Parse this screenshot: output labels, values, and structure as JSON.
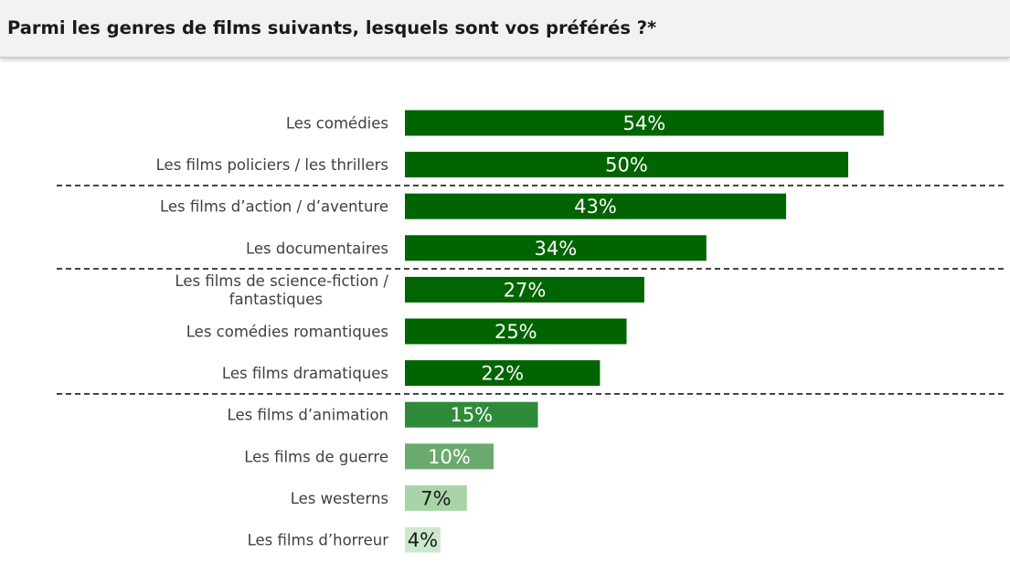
{
  "header": {
    "title": "Parmi les genres de films suivants, lesquels sont vos préférés ?*"
  },
  "chart_data": {
    "type": "bar",
    "orientation": "horizontal",
    "title": "Parmi les genres de films suivants, lesquels sont vos préférés ?*",
    "xlabel": "",
    "ylabel": "",
    "xlim": [
      0,
      60
    ],
    "grid": false,
    "legend": "none",
    "categories": [
      [
        "Les comédies"
      ],
      [
        "Les films policiers / les thrillers"
      ],
      [
        "Les films d’action / d’aventure"
      ],
      [
        "Les documentaires"
      ],
      [
        "Les films de science-fiction /",
        "fantastiques"
      ],
      [
        "Les comédies romantiques"
      ],
      [
        "Les films dramatiques"
      ],
      [
        "Les films d’animation"
      ],
      [
        "Les films de guerre"
      ],
      [
        "Les westerns"
      ],
      [
        "Les films d’horreur"
      ]
    ],
    "values": [
      54,
      50,
      43,
      34,
      27,
      25,
      22,
      15,
      10,
      7,
      4
    ],
    "data_labels": [
      "54%",
      "50%",
      "43%",
      "34%",
      "27%",
      "25%",
      "22%",
      "15%",
      "10%",
      "7%",
      "4%"
    ],
    "bar_colors": [
      "#006400",
      "#006400",
      "#006400",
      "#006400",
      "#006400",
      "#006400",
      "#006400",
      "#2e8b3a",
      "#6aaa6e",
      "#a8d4a8",
      "#cde8cd"
    ],
    "label_colors": [
      "#ffffff",
      "#ffffff",
      "#ffffff",
      "#ffffff",
      "#ffffff",
      "#ffffff",
      "#ffffff",
      "#ffffff",
      "#ffffff",
      "#1a1a1a",
      "#1a1a1a"
    ],
    "separators_after_index": [
      1,
      3,
      6
    ]
  }
}
